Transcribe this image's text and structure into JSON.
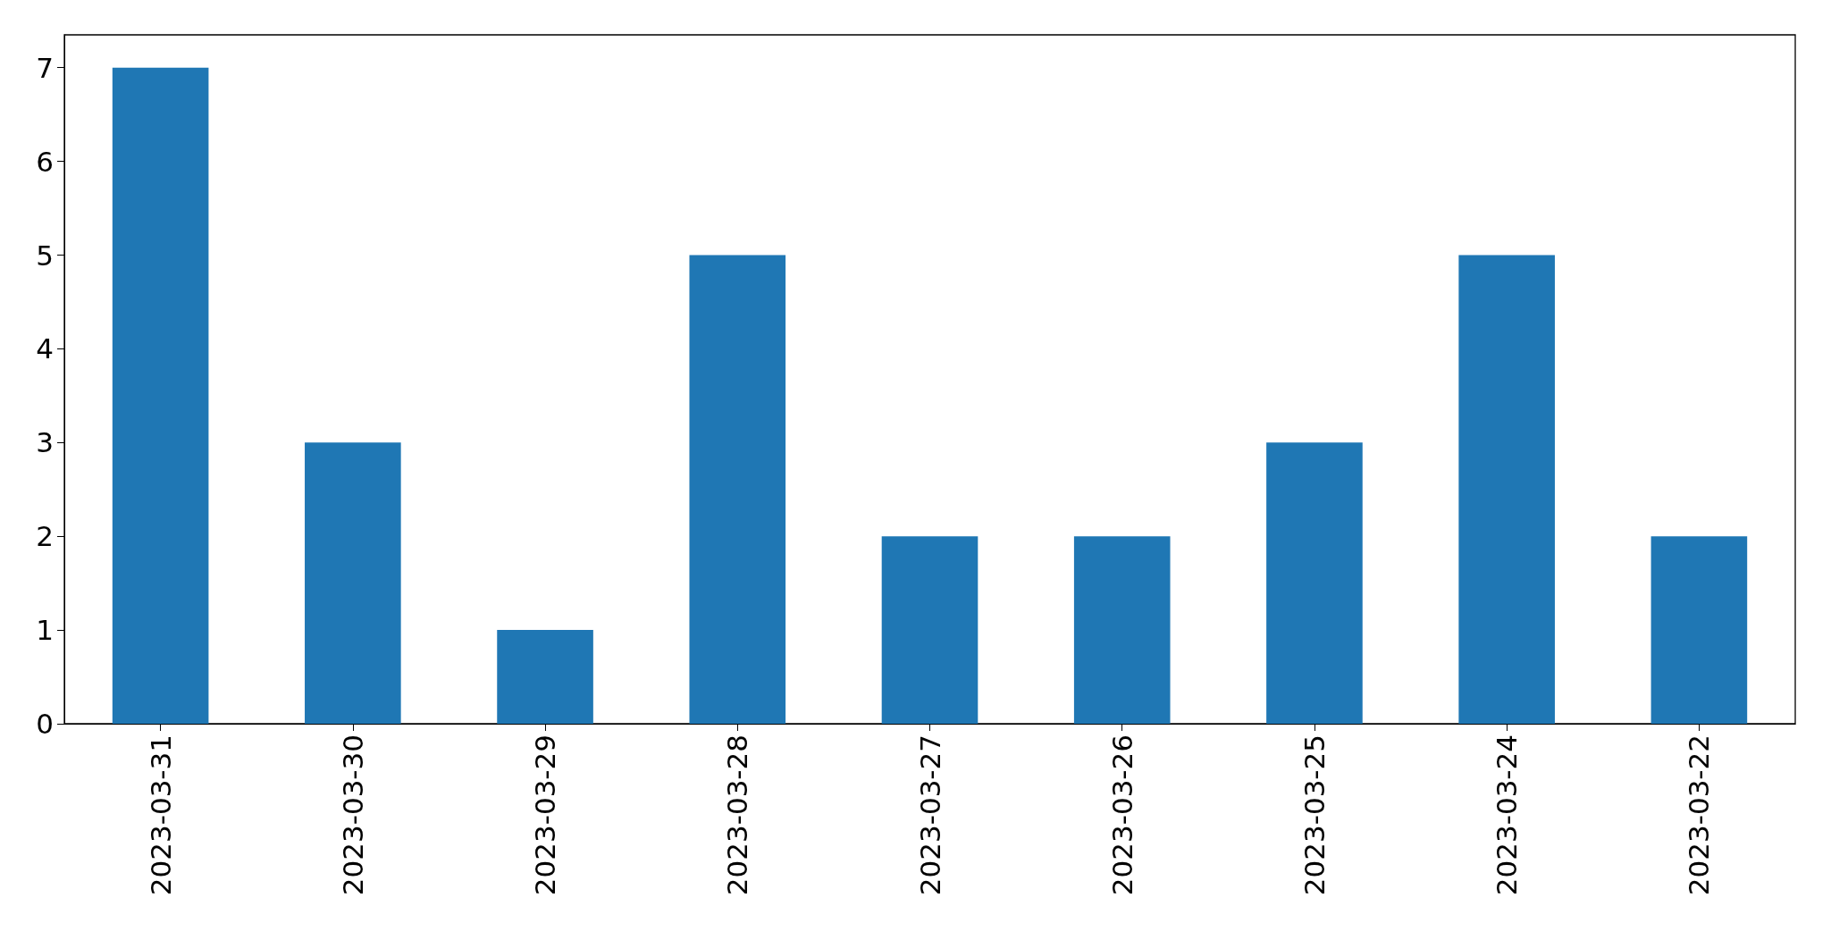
{
  "chart_data": {
    "type": "bar",
    "categories": [
      "2023-03-31",
      "2023-03-30",
      "2023-03-29",
      "2023-03-28",
      "2023-03-27",
      "2023-03-26",
      "2023-03-25",
      "2023-03-24",
      "2023-03-22"
    ],
    "values": [
      7,
      3,
      1,
      5,
      2,
      2,
      3,
      5,
      2
    ],
    "color": "#1f77b4",
    "ylim": [
      0,
      7.35
    ],
    "yticks": [
      0,
      1,
      2,
      3,
      4,
      5,
      6,
      7
    ],
    "grid": false
  }
}
